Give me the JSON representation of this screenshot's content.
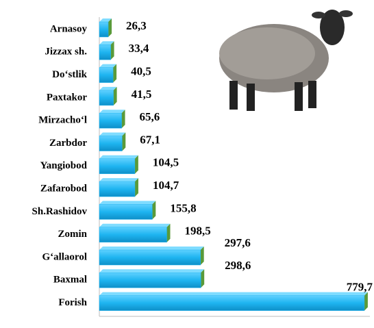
{
  "chart_data": {
    "type": "bar",
    "orientation": "horizontal",
    "categories": [
      "Arnasoy",
      "Jizzax sh.",
      "Do‘stlik",
      "Paxtakor",
      "Mirzacho‘l",
      "Zarbdor",
      "Yangiobod",
      "Zafarobod",
      "Sh.Rashidov",
      "Zomin",
      "G‘allaorol",
      "Baxmal",
      "Forish"
    ],
    "values": [
      26.3,
      33.4,
      40.5,
      41.5,
      65.6,
      67.1,
      104.5,
      104.7,
      155.8,
      198.5,
      297.6,
      298.6,
      779.7
    ],
    "value_labels": [
      "26,3",
      "33,4",
      "40,5",
      "41,5",
      "65,6",
      "67,1",
      "104,5",
      "104,7",
      "155,8",
      "198,5",
      "297,6",
      "298,6",
      "779,7"
    ],
    "color": "#1eb4f0",
    "xlim": [
      0,
      800
    ]
  }
}
